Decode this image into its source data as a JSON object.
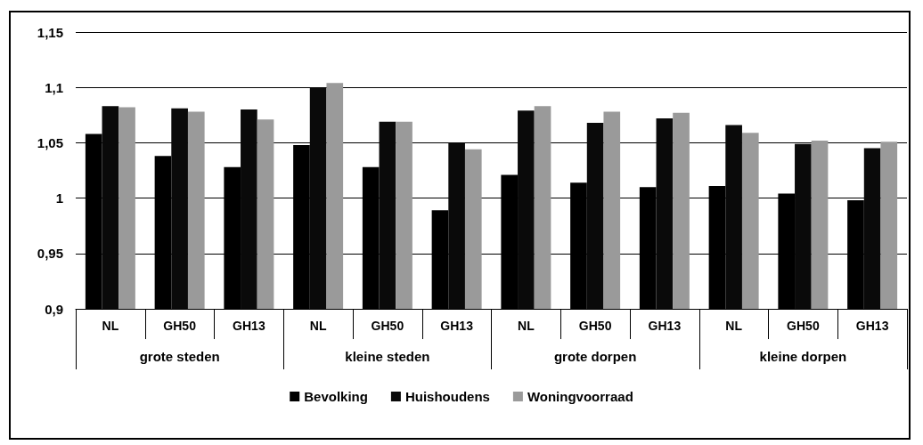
{
  "chart_data": {
    "type": "bar",
    "categories": [
      "NL",
      "GH50",
      "GH13",
      "NL",
      "GH50",
      "GH13",
      "NL",
      "GH50",
      "GH13",
      "NL",
      "GH50",
      "GH13"
    ],
    "annotations": [
      "grote steden",
      "kleine steden",
      "grote dorpen",
      "kleine dorpen"
    ],
    "series": [
      {
        "name": "Bevolking",
        "color": "#000000",
        "values": [
          1.058,
          1.038,
          1.028,
          1.048,
          1.028,
          0.989,
          1.021,
          1.014,
          1.01,
          1.011,
          1.004,
          0.998
        ]
      },
      {
        "name": "Huishoudens",
        "color": "#0a0a0a",
        "values": [
          1.083,
          1.081,
          1.08,
          1.1,
          1.069,
          1.05,
          1.079,
          1.068,
          1.072,
          1.066,
          1.049,
          1.045
        ]
      },
      {
        "name": "Woningvoorraad",
        "color": "#9a9a9a",
        "values": [
          1.082,
          1.078,
          1.071,
          1.104,
          1.069,
          1.044,
          1.083,
          1.078,
          1.077,
          1.059,
          1.052,
          1.051
        ]
      }
    ],
    "ylim": [
      0.9,
      1.15
    ],
    "yticks": [
      {
        "value": 0.9,
        "label": "0,9"
      },
      {
        "value": 0.95,
        "label": "0,95"
      },
      {
        "value": 1,
        "label": "1"
      },
      {
        "value": 1.05,
        "label": "1,05"
      },
      {
        "value": 1.1,
        "label": "1,1"
      },
      {
        "value": 1.15,
        "label": "1,15"
      }
    ],
    "grid": "y",
    "legend": "bottom"
  }
}
